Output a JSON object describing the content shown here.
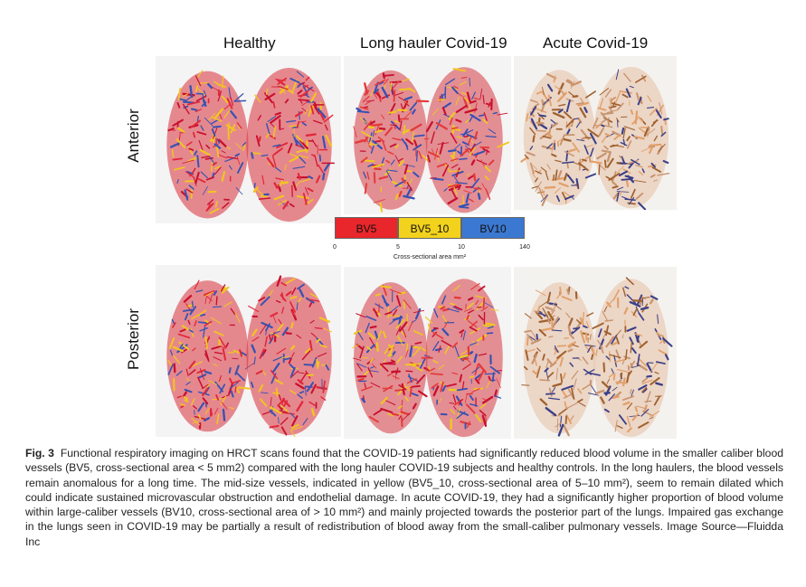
{
  "columns": [
    {
      "title": "Healthy"
    },
    {
      "title": "Long hauler Covid-19"
    },
    {
      "title": "Acute Covid-19"
    }
  ],
  "rows": [
    {
      "label": "Anterior"
    },
    {
      "label": "Posterior"
    }
  ],
  "legend": {
    "segments": [
      {
        "label": "BV5",
        "color": "#e8262b"
      },
      {
        "label": "BV5_10",
        "color": "#f2d21c"
      },
      {
        "label": "BV10",
        "color": "#3b78d1"
      }
    ],
    "ticks": [
      "0",
      "5",
      "10",
      "140"
    ],
    "axis_label": "Cross-sectional area mm²"
  },
  "caption": {
    "fig_label": "Fig. 3",
    "text": "Functional respiratory imaging on HRCT scans found that the COVID-19 patients had significantly reduced blood volume in the smaller caliber blood vessels (BV5, cross-sectional area < 5 mm2) compared with the long hauler COVID-19 subjects and healthy controls. In the long haulers, the blood vessels remain anomalous for a long time. The mid-size vessels, indicated in yellow (BV5_10, cross-sectional area of 5–10 mm²), seem to remain dilated which could indicate sustained microvascular obstruction and endothelial damage. In acute COVID-19, they had a significantly higher proportion of blood volume within large-caliber vessels (BV10, cross-sectional area of > 10 mm²) and mainly projected towards the posterior part of the lungs. Impaired gas exchange in the lungs seen in COVID-19 may be partially a result of redistribution of blood away from the small-caliber pulmonary vessels. Image Source—Fluidda Inc"
  },
  "panel_palettes": {
    "healthy": {
      "bg": "#f4f4f4",
      "base": "#d8303a",
      "vessels": [
        "#c8102e",
        "#e0283a",
        "#f2c520",
        "#3a53b0"
      ]
    },
    "longhauler": {
      "bg": "#f4f4f4",
      "base": "#d63a44",
      "vessels": [
        "#c8102e",
        "#e33a3a",
        "#f0c81f",
        "#3450b4"
      ]
    },
    "acute": {
      "bg": "#f4f2ef",
      "base": "#e6bfa4",
      "vessels": [
        "#c8946e",
        "#a0612f",
        "#3a3f88",
        "#e2a06a"
      ]
    }
  }
}
